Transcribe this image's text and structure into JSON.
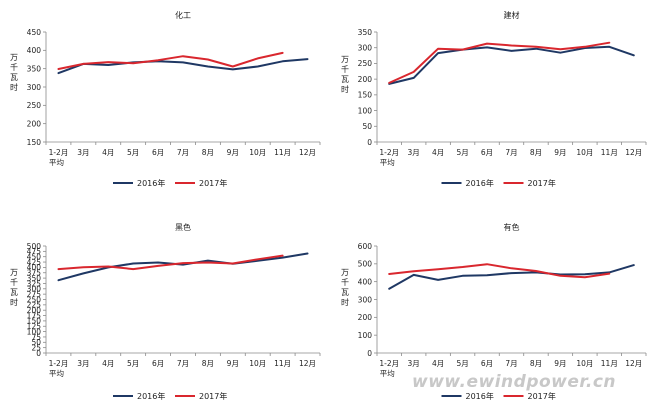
{
  "chart_data": [
    {
      "type": "line",
      "title": "化工",
      "ylabel": "万千瓦时",
      "categories": [
        "1-2月\n平均",
        "3月",
        "4月",
        "5月",
        "6月",
        "7月",
        "8月",
        "9月",
        "10月",
        "11月",
        "12月"
      ],
      "ylim": [
        150,
        450
      ],
      "yticks": [
        150,
        200,
        250,
        300,
        350,
        400,
        450
      ],
      "grid": false,
      "legend_position": "bottom",
      "series": [
        {
          "name": "2016年",
          "color": "#1f3864",
          "values": [
            338,
            363,
            360,
            367,
            370,
            367,
            356,
            348,
            356,
            370,
            376
          ]
        },
        {
          "name": "2017年",
          "color": "#d9272e",
          "values": [
            349,
            363,
            368,
            365,
            373,
            384,
            375,
            356,
            378,
            393,
            null
          ]
        }
      ]
    },
    {
      "type": "line",
      "title": "建材",
      "ylabel": "万千瓦时",
      "categories": [
        "1-2月\n平均",
        "3月",
        "4月",
        "5月",
        "6月",
        "7月",
        "8月",
        "9月",
        "10月",
        "11月",
        "12月"
      ],
      "ylim": [
        0,
        350
      ],
      "yticks": [
        0,
        50,
        100,
        150,
        200,
        250,
        300,
        350
      ],
      "grid": false,
      "legend_position": "bottom",
      "series": [
        {
          "name": "2016年",
          "color": "#1f3864",
          "values": [
            185,
            204,
            283,
            294,
            301,
            290,
            297,
            284,
            299,
            303,
            276
          ]
        },
        {
          "name": "2017年",
          "color": "#d9272e",
          "values": [
            188,
            223,
            297,
            294,
            313,
            307,
            303,
            295,
            303,
            316,
            null
          ]
        }
      ]
    },
    {
      "type": "line",
      "title": "黑色",
      "ylabel": "万千瓦时",
      "categories": [
        "1-2月\n平均",
        "3月",
        "4月",
        "5月",
        "6月",
        "7月",
        "8月",
        "9月",
        "10月",
        "11月",
        "12月"
      ],
      "ylim": [
        0,
        500
      ],
      "yticks": [
        0,
        25,
        50,
        75,
        100,
        125,
        150,
        175,
        200,
        225,
        250,
        275,
        300,
        325,
        350,
        375,
        400,
        425,
        450,
        475,
        500
      ],
      "grid": false,
      "legend_position": "bottom",
      "series": [
        {
          "name": "2016年",
          "color": "#1f3864",
          "values": [
            340,
            372,
            400,
            418,
            423,
            413,
            432,
            417,
            431,
            446,
            465
          ]
        },
        {
          "name": "2017年",
          "color": "#d9272e",
          "values": [
            392,
            401,
            404,
            392,
            407,
            420,
            423,
            418,
            438,
            455,
            null
          ]
        }
      ]
    },
    {
      "type": "line",
      "title": "有色",
      "ylabel": "万千瓦时",
      "categories": [
        "1-2月\n平均",
        "3月",
        "4月",
        "5月",
        "6月",
        "7月",
        "8月",
        "9月",
        "10月",
        "11月",
        "12月"
      ],
      "ylim": [
        0,
        600
      ],
      "yticks": [
        0,
        100,
        200,
        300,
        400,
        500,
        600
      ],
      "grid": false,
      "legend_position": "bottom",
      "series": [
        {
          "name": "2016年",
          "color": "#1f3864",
          "values": [
            360,
            438,
            410,
            433,
            436,
            448,
            452,
            440,
            442,
            452,
            493
          ]
        },
        {
          "name": "2017年",
          "color": "#d9272e",
          "values": [
            443,
            458,
            470,
            482,
            498,
            475,
            460,
            433,
            425,
            445,
            null
          ]
        }
      ]
    }
  ],
  "watermark": "www.ewindpower.cn"
}
